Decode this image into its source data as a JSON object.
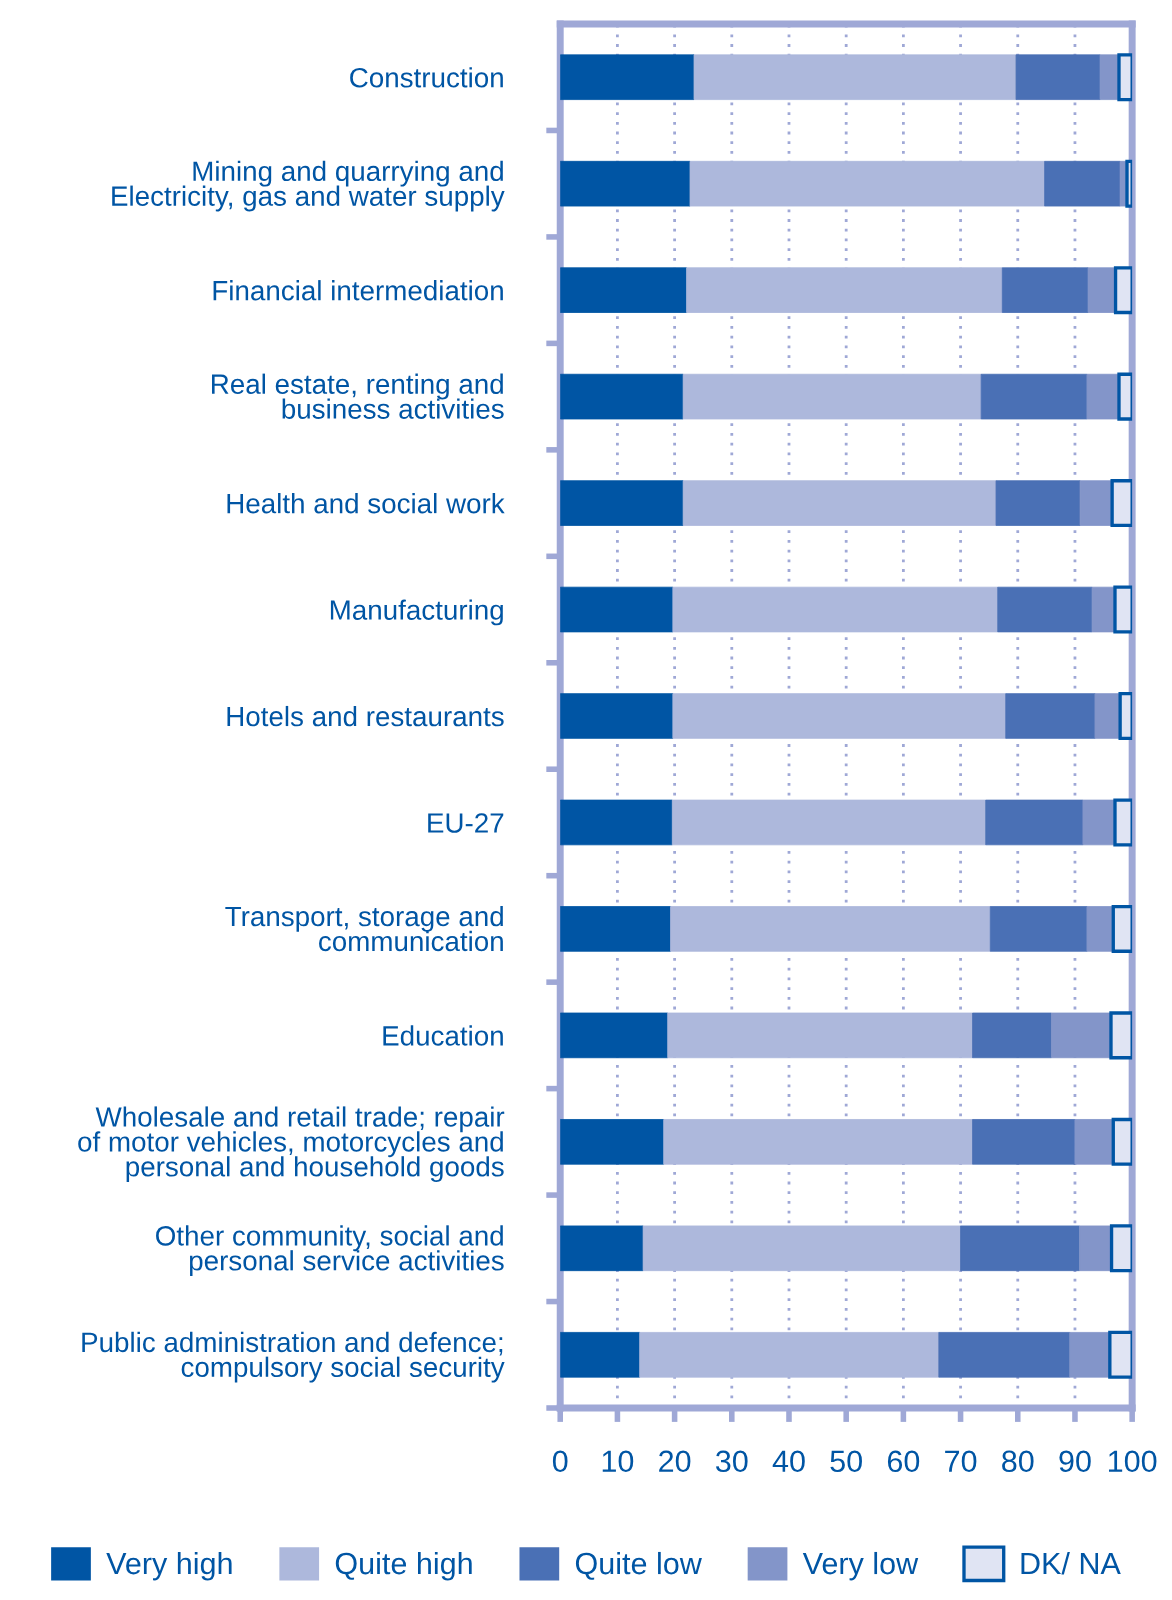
{
  "chart_data": {
    "type": "bar",
    "orientation": "horizontal",
    "stacked": true,
    "categories": [
      "Construction",
      "Mining and quarrying and\nElectricity, gas and water supply",
      "Financial intermediation",
      "Real estate, renting and\nbusiness activities",
      "Health and social work",
      "Manufacturing",
      "Hotels and restaurants",
      "EU-27",
      "Transport, storage and\ncommunication",
      "Education",
      "Wholesale and retail trade; repair\nof motor vehicles, motorcycles and\npersonal and household goods",
      "Other community, social and\npersonal service activities",
      "Public administration and defence;\ncompulsory social security"
    ],
    "series": [
      {
        "name": "Very high",
        "color": "#0055a4",
        "values": [
          23.4,
          22.7,
          22.1,
          21.5,
          21.5,
          19.7,
          19.7,
          19.6,
          19.3,
          18.8,
          18.1,
          14.5,
          13.9
        ]
      },
      {
        "name": "Quite high",
        "color": "#adb8dc",
        "values": [
          56.3,
          62.0,
          55.2,
          52.1,
          54.7,
          56.8,
          58.2,
          54.8,
          55.9,
          53.3,
          54.0,
          55.5,
          52.3
        ]
      },
      {
        "name": "Quite low",
        "color": "#4a70b5",
        "values": [
          14.7,
          13.2,
          15.0,
          18.5,
          14.7,
          16.5,
          15.6,
          17.0,
          16.9,
          13.8,
          17.9,
          20.8,
          22.9
        ]
      },
      {
        "name": "Very low",
        "color": "#8395c9",
        "values": [
          3.3,
          1.2,
          4.8,
          5.6,
          5.6,
          4.0,
          4.4,
          5.6,
          4.6,
          10.4,
          6.7,
          5.6,
          7.0
        ]
      },
      {
        "name": "DK/ NA",
        "color": "#e0e4f3",
        "values": [
          2.3,
          0.9,
          2.9,
          2.3,
          3.5,
          3.0,
          2.1,
          3.0,
          3.3,
          3.7,
          3.3,
          3.6,
          3.9
        ]
      }
    ],
    "xlim": [
      0,
      100
    ],
    "xticks": [
      0,
      10,
      20,
      30,
      40,
      50,
      60,
      70,
      80,
      90,
      100
    ],
    "grid": "x",
    "legend": "bottom"
  }
}
